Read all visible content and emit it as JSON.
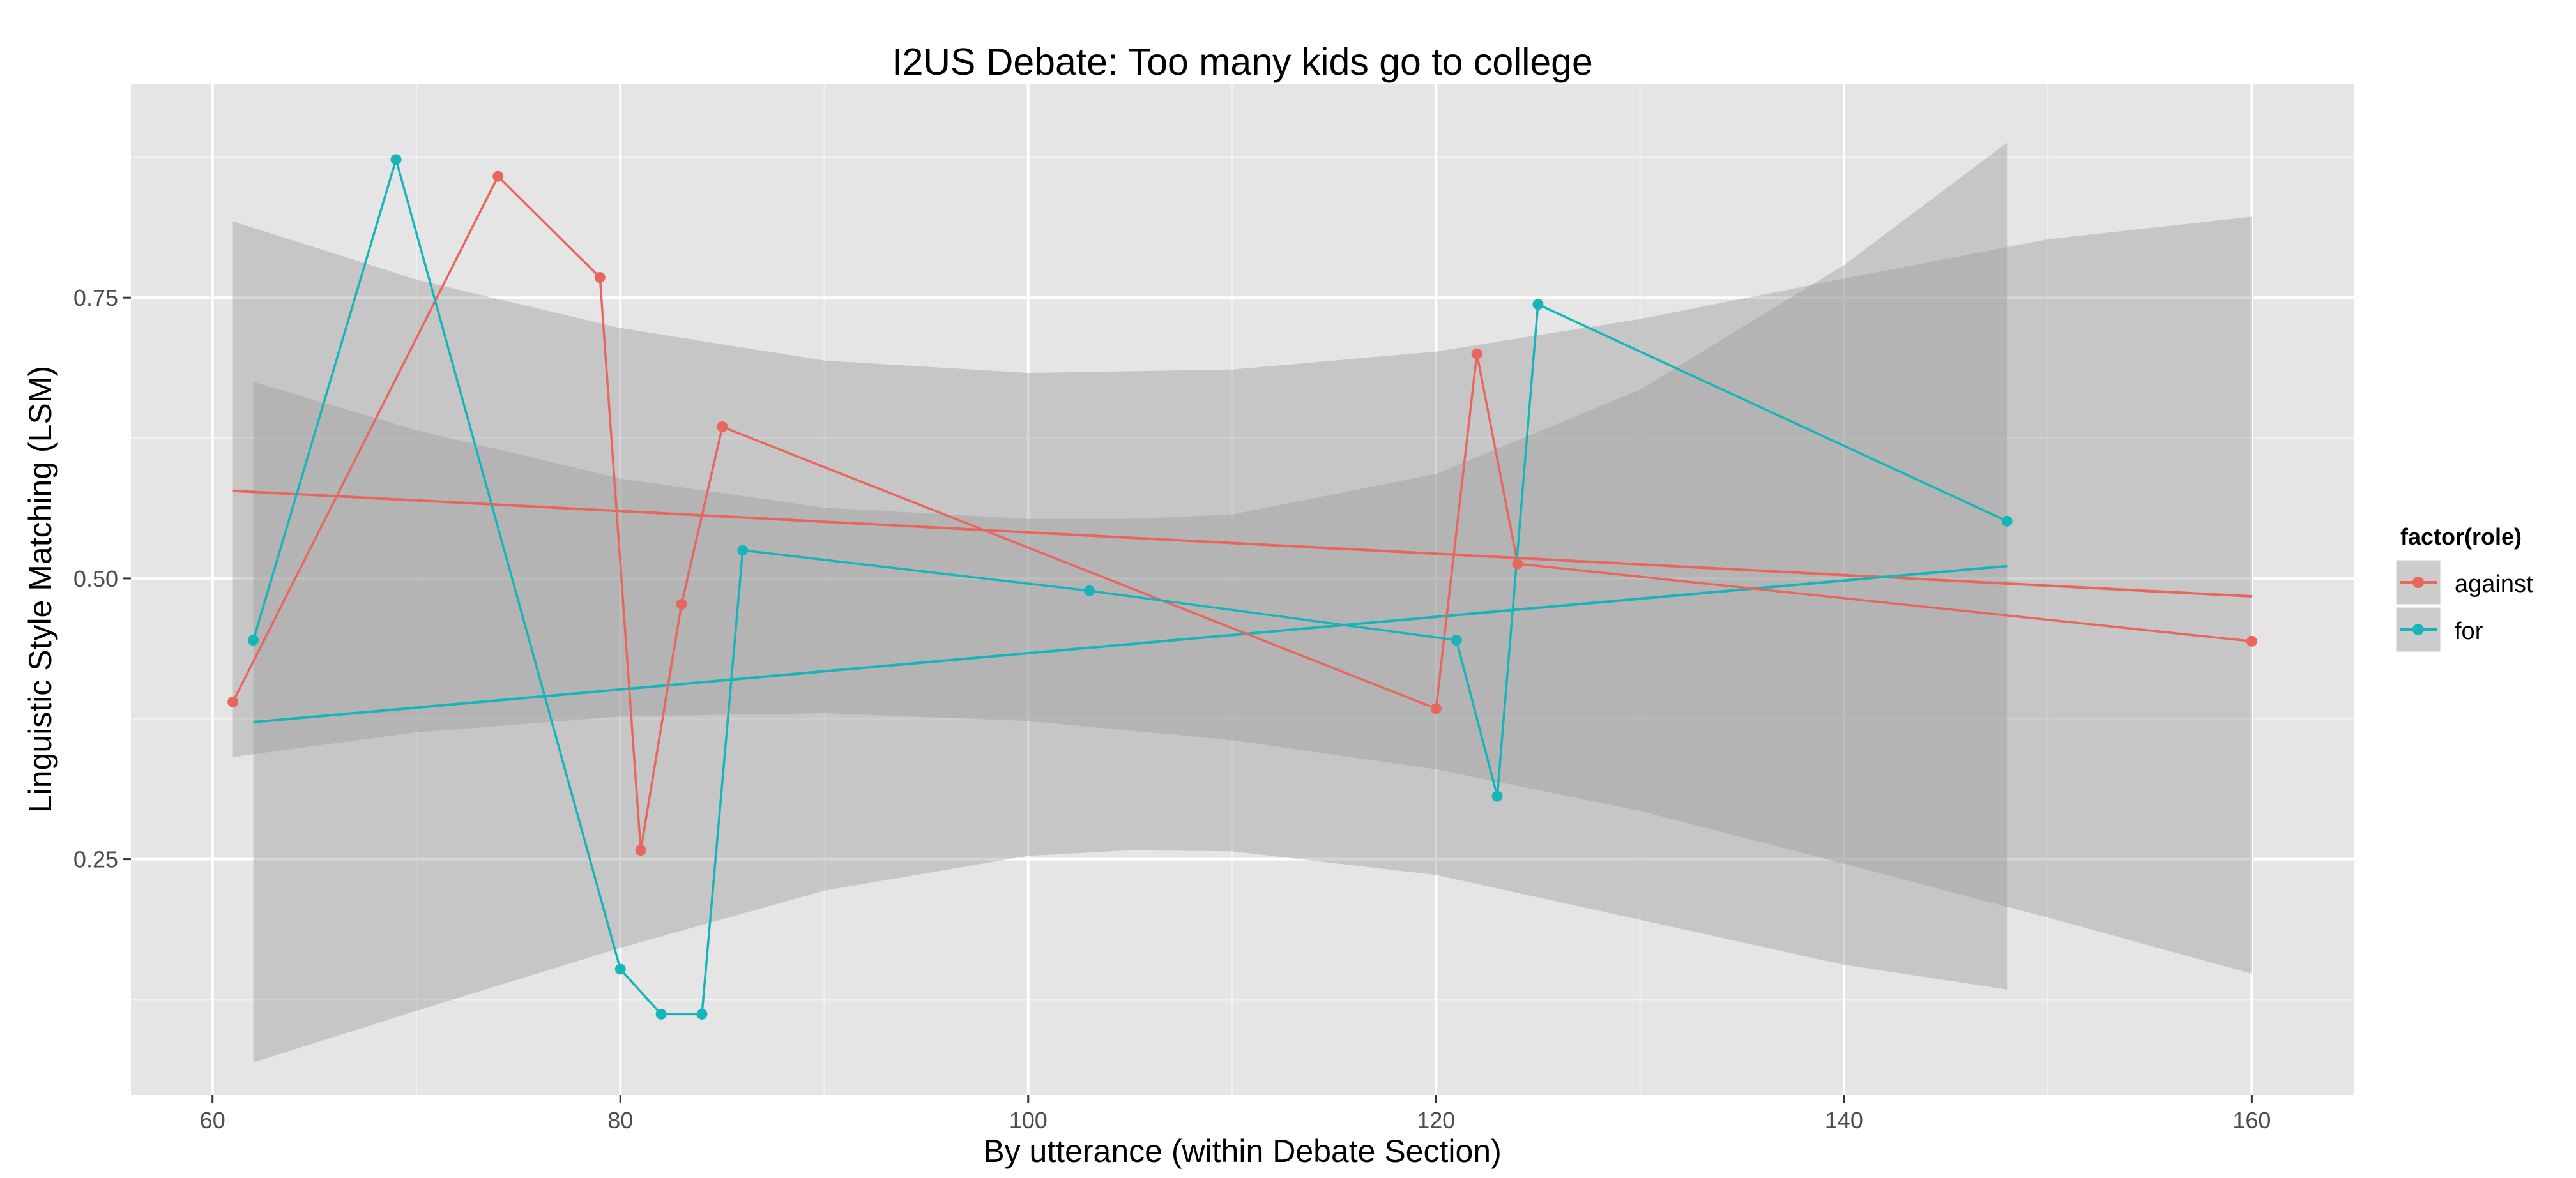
{
  "chart_data": {
    "type": "line",
    "title": "I2US Debate: Too many kids go to college",
    "xlabel": "By utterance (within Debate Section)",
    "ylabel": "Linguistic Style Matching (LSM)",
    "xlim": [
      56,
      165
    ],
    "ylim": [
      0.04,
      0.94
    ],
    "x_ticks": [
      60,
      80,
      100,
      120,
      140,
      160
    ],
    "x_tick_labels": [
      "60",
      "80",
      "100",
      "120",
      "140",
      "160"
    ],
    "y_ticks": [
      0.25,
      0.5,
      0.75
    ],
    "y_tick_labels": [
      "0.25",
      "0.50",
      "0.75"
    ],
    "grid": true,
    "legend": {
      "title": "factor(role)",
      "position": "right"
    },
    "series": [
      {
        "name": "against",
        "color": "#E7675E",
        "x": [
          61,
          74,
          79,
          81,
          83,
          85,
          120,
          122,
          124,
          160
        ],
        "y": [
          0.39,
          0.858,
          0.768,
          0.258,
          0.477,
          0.635,
          0.384,
          0.7,
          0.513,
          0.444
        ],
        "trend": {
          "x": [
            61,
            160
          ],
          "y": [
            0.578,
            0.484
          ]
        },
        "band": {
          "x": [
            61,
            70,
            80,
            90,
            100,
            110,
            120,
            130,
            140,
            150,
            160
          ],
          "upper": [
            0.818,
            0.766,
            0.723,
            0.694,
            0.683,
            0.686,
            0.702,
            0.731,
            0.767,
            0.802,
            0.822
          ],
          "lower": [
            0.341,
            0.363,
            0.377,
            0.38,
            0.373,
            0.356,
            0.33,
            0.293,
            0.246,
            0.198,
            0.148
          ]
        }
      },
      {
        "name": "for",
        "color": "#17B5BA",
        "x": [
          62,
          69,
          80,
          82,
          84,
          86,
          103,
          121,
          123,
          125,
          148
        ],
        "y": [
          0.445,
          0.873,
          0.152,
          0.112,
          0.112,
          0.525,
          0.489,
          0.445,
          0.306,
          0.744,
          0.551
        ],
        "trend": {
          "x": [
            62,
            148
          ],
          "y": [
            0.372,
            0.511
          ]
        },
        "band": {
          "x": [
            62,
            70,
            80,
            90,
            100,
            105,
            110,
            120,
            130,
            140,
            148
          ],
          "upper": [
            0.675,
            0.632,
            0.589,
            0.563,
            0.553,
            0.553,
            0.557,
            0.593,
            0.668,
            0.779,
            0.888
          ],
          "lower": [
            0.069,
            0.115,
            0.171,
            0.222,
            0.253,
            0.258,
            0.257,
            0.236,
            0.196,
            0.156,
            0.134
          ]
        }
      }
    ]
  }
}
